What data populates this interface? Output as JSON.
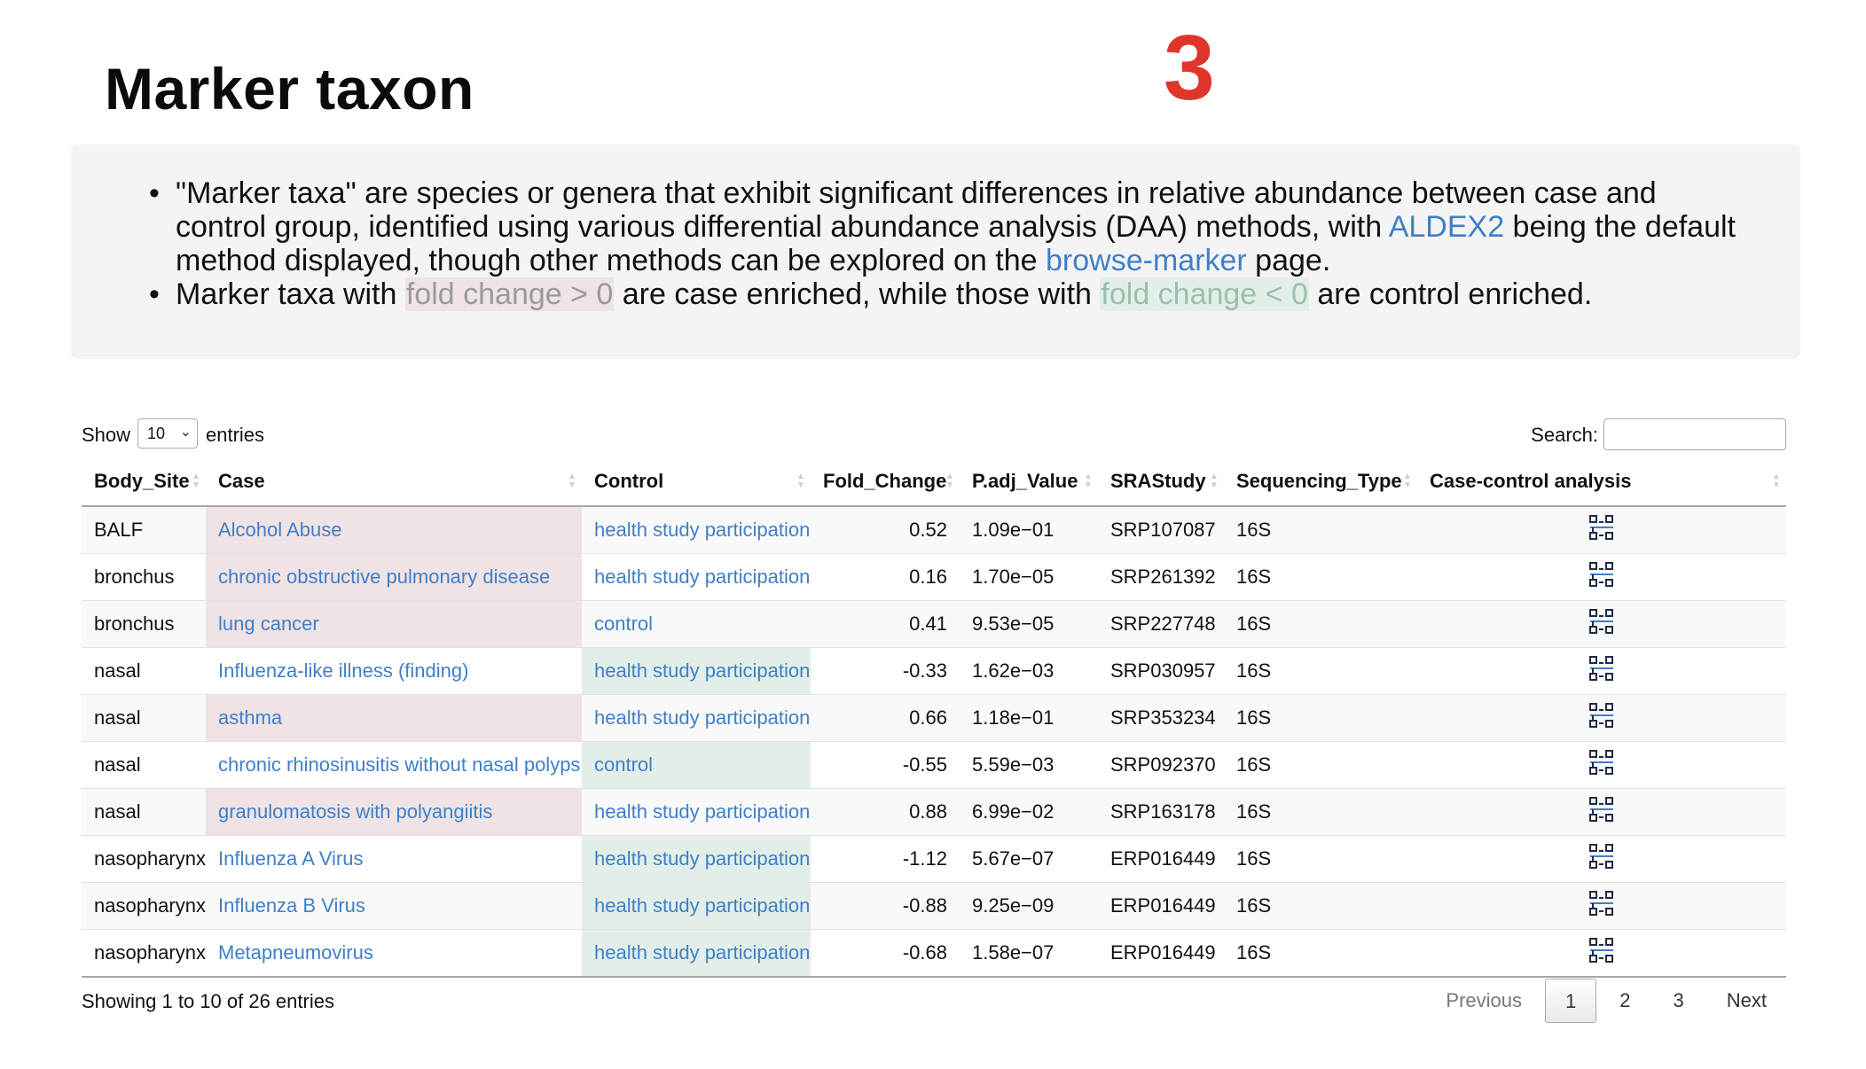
{
  "page": {
    "title": "Marker taxon",
    "step_number": "3"
  },
  "info": {
    "bullet1_part1": "\"Marker taxa\" are species or genera that exhibit significant differences in relative abundance between case and control group, identified using various differential abundance analysis (DAA) methods, with ",
    "bullet1_link1": "ALDEX2",
    "bullet1_part2": " being the default method displayed, though other methods can be explored on the ",
    "bullet1_link2": "browse-marker",
    "bullet1_part3": " page.",
    "bullet2_part1": "Marker taxa with ",
    "bullet2_tag1": "fold change > 0",
    "bullet2_part2": " are case enriched, while those with ",
    "bullet2_tag2": "fold change < 0",
    "bullet2_part3": " are control enriched."
  },
  "controls": {
    "show_label": "Show",
    "length_value": "10",
    "entries_label": "entries",
    "search_label": "Search:",
    "search_value": ""
  },
  "table": {
    "headers": [
      "Body_Site",
      "Case",
      "Control",
      "Fold_Change",
      "P.adj_Value",
      "SRAStudy",
      "Sequencing_Type",
      "Case-control analysis"
    ],
    "rows": [
      {
        "body_site": "BALF",
        "case": "Alcohol Abuse",
        "control": "health study participation",
        "fold_change": "0.52",
        "p_adj": "1.09e-01",
        "study": "SRP107087",
        "seq_type": "16S",
        "enriched": "case"
      },
      {
        "body_site": "bronchus",
        "case": "chronic obstructive pulmonary disease",
        "control": "health study participation",
        "fold_change": "0.16",
        "p_adj": "1.70e-05",
        "study": "SRP261392",
        "seq_type": "16S",
        "enriched": "case"
      },
      {
        "body_site": "bronchus",
        "case": "lung cancer",
        "control": "control",
        "fold_change": "0.41",
        "p_adj": "9.53e-05",
        "study": "SRP227748",
        "seq_type": "16S",
        "enriched": "case"
      },
      {
        "body_site": "nasal",
        "case": "Influenza-like illness (finding)",
        "control": "health study participation",
        "fold_change": "-0.33",
        "p_adj": "1.62e-03",
        "study": "SRP030957",
        "seq_type": "16S",
        "enriched": "control"
      },
      {
        "body_site": "nasal",
        "case": "asthma",
        "control": "health study participation",
        "fold_change": "0.66",
        "p_adj": "1.18e-01",
        "study": "SRP353234",
        "seq_type": "16S",
        "enriched": "case"
      },
      {
        "body_site": "nasal",
        "case": "chronic rhinosinusitis without nasal polyps",
        "control": "control",
        "fold_change": "-0.55",
        "p_adj": "5.59e-03",
        "study": "SRP092370",
        "seq_type": "16S",
        "enriched": "control"
      },
      {
        "body_site": "nasal",
        "case": "granulomatosis with polyangiitis",
        "control": "health study participation",
        "fold_change": "0.88",
        "p_adj": "6.99e-02",
        "study": "SRP163178",
        "seq_type": "16S",
        "enriched": "case"
      },
      {
        "body_site": "nasopharynx",
        "case": "Influenza A Virus",
        "control": "health study participation",
        "fold_change": "-1.12",
        "p_adj": "5.67e-07",
        "study": "ERP016449",
        "seq_type": "16S",
        "enriched": "control"
      },
      {
        "body_site": "nasopharynx",
        "case": "Influenza B Virus",
        "control": "health study participation",
        "fold_change": "-0.88",
        "p_adj": "9.25e-09",
        "study": "ERP016449",
        "seq_type": "16S",
        "enriched": "control"
      },
      {
        "body_site": "nasopharynx",
        "case": "Metapneumovirus",
        "control": "health study participation",
        "fold_change": "-0.68",
        "p_adj": "1.58e-07",
        "study": "ERP016449",
        "seq_type": "16S",
        "enriched": "control"
      }
    ]
  },
  "footer": {
    "info": "Showing 1 to 10 of 26 entries",
    "previous": "Previous",
    "pages": [
      "1",
      "2",
      "3"
    ],
    "current_page": "1",
    "next": "Next"
  },
  "colors": {
    "accent_link": "#3f7fc9",
    "step_number": "#e0352b",
    "case_enriched_bg": "#efe3e5",
    "control_enriched_bg": "#e2efe8"
  },
  "icons": {
    "analysis": "network-diagram-icon",
    "sort": "sort-both-icon",
    "dropdown": "chevron-down-icon"
  }
}
